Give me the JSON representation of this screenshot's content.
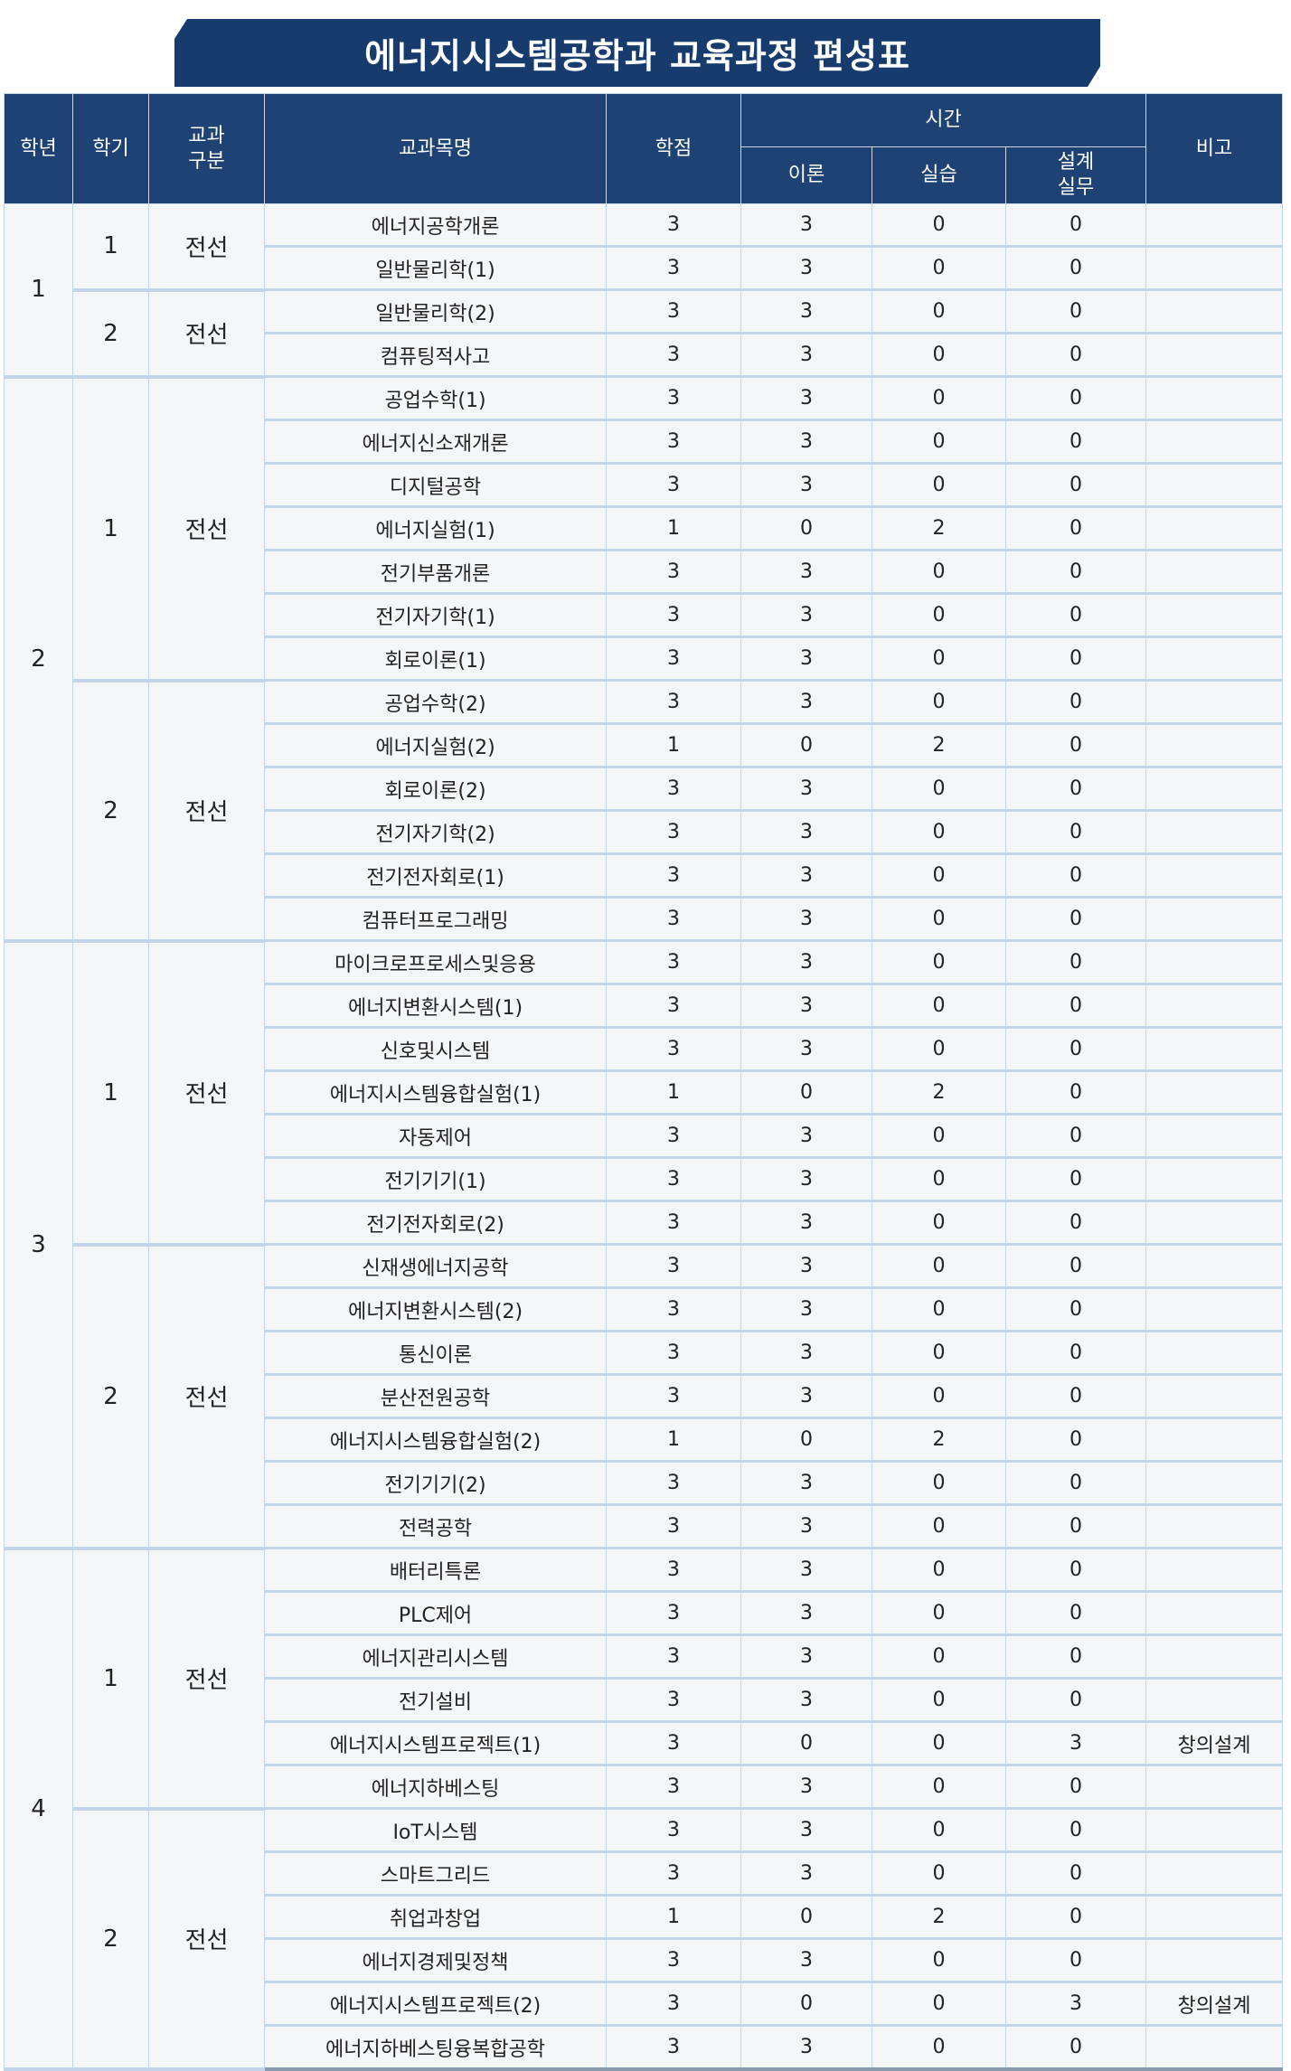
{
  "title": "에너지시스템공학과 교육과정 편성표",
  "headers": {
    "year": "학년",
    "semester": "학기",
    "category": "교과\n구분",
    "course": "교과목명",
    "credit": "학점",
    "hours": "시간",
    "theory": "이론",
    "practice": "실습",
    "design": "설계\n실무",
    "note": "비고"
  },
  "colors": {
    "header": "#1d4273",
    "banner": "#173b6c",
    "row_bg": "#f5f6f8",
    "grid": "#c3d5ea"
  },
  "years": [
    {
      "year": "1",
      "semesters": [
        {
          "semester": "1",
          "category": "전선",
          "courses": [
            {
              "name": "에너지공학개론",
              "credit": "3",
              "theory": "3",
              "practice": "0",
              "design": "0",
              "note": ""
            },
            {
              "name": "일반물리학(1)",
              "credit": "3",
              "theory": "3",
              "practice": "0",
              "design": "0",
              "note": ""
            }
          ]
        },
        {
          "semester": "2",
          "category": "전선",
          "courses": [
            {
              "name": "일반물리학(2)",
              "credit": "3",
              "theory": "3",
              "practice": "0",
              "design": "0",
              "note": ""
            },
            {
              "name": "컴퓨팅적사고",
              "credit": "3",
              "theory": "3",
              "practice": "0",
              "design": "0",
              "note": ""
            }
          ]
        }
      ]
    },
    {
      "year": "2",
      "semesters": [
        {
          "semester": "1",
          "category": "전선",
          "courses": [
            {
              "name": "공업수학(1)",
              "credit": "3",
              "theory": "3",
              "practice": "0",
              "design": "0",
              "note": ""
            },
            {
              "name": "에너지신소재개론",
              "credit": "3",
              "theory": "3",
              "practice": "0",
              "design": "0",
              "note": ""
            },
            {
              "name": "디지털공학",
              "credit": "3",
              "theory": "3",
              "practice": "0",
              "design": "0",
              "note": ""
            },
            {
              "name": "에너지실험(1)",
              "credit": "1",
              "theory": "0",
              "practice": "2",
              "design": "0",
              "note": ""
            },
            {
              "name": "전기부품개론",
              "credit": "3",
              "theory": "3",
              "practice": "0",
              "design": "0",
              "note": ""
            },
            {
              "name": "전기자기학(1)",
              "credit": "3",
              "theory": "3",
              "practice": "0",
              "design": "0",
              "note": ""
            },
            {
              "name": "회로이론(1)",
              "credit": "3",
              "theory": "3",
              "practice": "0",
              "design": "0",
              "note": ""
            }
          ]
        },
        {
          "semester": "2",
          "category": "전선",
          "courses": [
            {
              "name": "공업수학(2)",
              "credit": "3",
              "theory": "3",
              "practice": "0",
              "design": "0",
              "note": ""
            },
            {
              "name": "에너지실험(2)",
              "credit": "1",
              "theory": "0",
              "practice": "2",
              "design": "0",
              "note": ""
            },
            {
              "name": "회로이론(2)",
              "credit": "3",
              "theory": "3",
              "practice": "0",
              "design": "0",
              "note": ""
            },
            {
              "name": "전기자기학(2)",
              "credit": "3",
              "theory": "3",
              "practice": "0",
              "design": "0",
              "note": ""
            },
            {
              "name": "전기전자회로(1)",
              "credit": "3",
              "theory": "3",
              "practice": "0",
              "design": "0",
              "note": ""
            },
            {
              "name": "컴퓨터프로그래밍",
              "credit": "3",
              "theory": "3",
              "practice": "0",
              "design": "0",
              "note": ""
            }
          ]
        }
      ]
    },
    {
      "year": "3",
      "semesters": [
        {
          "semester": "1",
          "category": "전선",
          "courses": [
            {
              "name": "마이크로프로세스및응용",
              "credit": "3",
              "theory": "3",
              "practice": "0",
              "design": "0",
              "note": ""
            },
            {
              "name": "에너지변환시스템(1)",
              "credit": "3",
              "theory": "3",
              "practice": "0",
              "design": "0",
              "note": ""
            },
            {
              "name": "신호및시스템",
              "credit": "3",
              "theory": "3",
              "practice": "0",
              "design": "0",
              "note": ""
            },
            {
              "name": "에너지시스템융합실험(1)",
              "credit": "1",
              "theory": "0",
              "practice": "2",
              "design": "0",
              "note": ""
            },
            {
              "name": "자동제어",
              "credit": "3",
              "theory": "3",
              "practice": "0",
              "design": "0",
              "note": ""
            },
            {
              "name": "전기기기(1)",
              "credit": "3",
              "theory": "3",
              "practice": "0",
              "design": "0",
              "note": ""
            },
            {
              "name": "전기전자회로(2)",
              "credit": "3",
              "theory": "3",
              "practice": "0",
              "design": "0",
              "note": ""
            }
          ]
        },
        {
          "semester": "2",
          "category": "전선",
          "courses": [
            {
              "name": "신재생에너지공학",
              "credit": "3",
              "theory": "3",
              "practice": "0",
              "design": "0",
              "note": ""
            },
            {
              "name": "에너지변환시스템(2)",
              "credit": "3",
              "theory": "3",
              "practice": "0",
              "design": "0",
              "note": ""
            },
            {
              "name": "통신이론",
              "credit": "3",
              "theory": "3",
              "practice": "0",
              "design": "0",
              "note": ""
            },
            {
              "name": "분산전원공학",
              "credit": "3",
              "theory": "3",
              "practice": "0",
              "design": "0",
              "note": ""
            },
            {
              "name": "에너지시스템융합실험(2)",
              "credit": "1",
              "theory": "0",
              "practice": "2",
              "design": "0",
              "note": ""
            },
            {
              "name": "전기기기(2)",
              "credit": "3",
              "theory": "3",
              "practice": "0",
              "design": "0",
              "note": ""
            },
            {
              "name": "전력공학",
              "credit": "3",
              "theory": "3",
              "practice": "0",
              "design": "0",
              "note": ""
            }
          ]
        }
      ]
    },
    {
      "year": "4",
      "semesters": [
        {
          "semester": "1",
          "category": "전선",
          "courses": [
            {
              "name": "배터리특론",
              "credit": "3",
              "theory": "3",
              "practice": "0",
              "design": "0",
              "note": ""
            },
            {
              "name": "PLC제어",
              "credit": "3",
              "theory": "3",
              "practice": "0",
              "design": "0",
              "note": ""
            },
            {
              "name": "에너지관리시스템",
              "credit": "3",
              "theory": "3",
              "practice": "0",
              "design": "0",
              "note": ""
            },
            {
              "name": "전기설비",
              "credit": "3",
              "theory": "3",
              "practice": "0",
              "design": "0",
              "note": ""
            },
            {
              "name": "에너지시스템프로젝트(1)",
              "credit": "3",
              "theory": "0",
              "practice": "0",
              "design": "3",
              "note": "창의설계"
            },
            {
              "name": "에너지하베스팅",
              "credit": "3",
              "theory": "3",
              "practice": "0",
              "design": "0",
              "note": ""
            }
          ]
        },
        {
          "semester": "2",
          "category": "전선",
          "courses": [
            {
              "name": "IoT시스템",
              "credit": "3",
              "theory": "3",
              "practice": "0",
              "design": "0",
              "note": ""
            },
            {
              "name": "스마트그리드",
              "credit": "3",
              "theory": "3",
              "practice": "0",
              "design": "0",
              "note": ""
            },
            {
              "name": "취업과창업",
              "credit": "1",
              "theory": "0",
              "practice": "2",
              "design": "0",
              "note": ""
            },
            {
              "name": "에너지경제및정책",
              "credit": "3",
              "theory": "3",
              "practice": "0",
              "design": "0",
              "note": ""
            },
            {
              "name": "에너지시스템프로젝트(2)",
              "credit": "3",
              "theory": "0",
              "practice": "0",
              "design": "3",
              "note": "창의설계"
            },
            {
              "name": "에너지하베스팅융복합공학",
              "credit": "3",
              "theory": "3",
              "practice": "0",
              "design": "0",
              "note": ""
            }
          ]
        }
      ]
    }
  ]
}
